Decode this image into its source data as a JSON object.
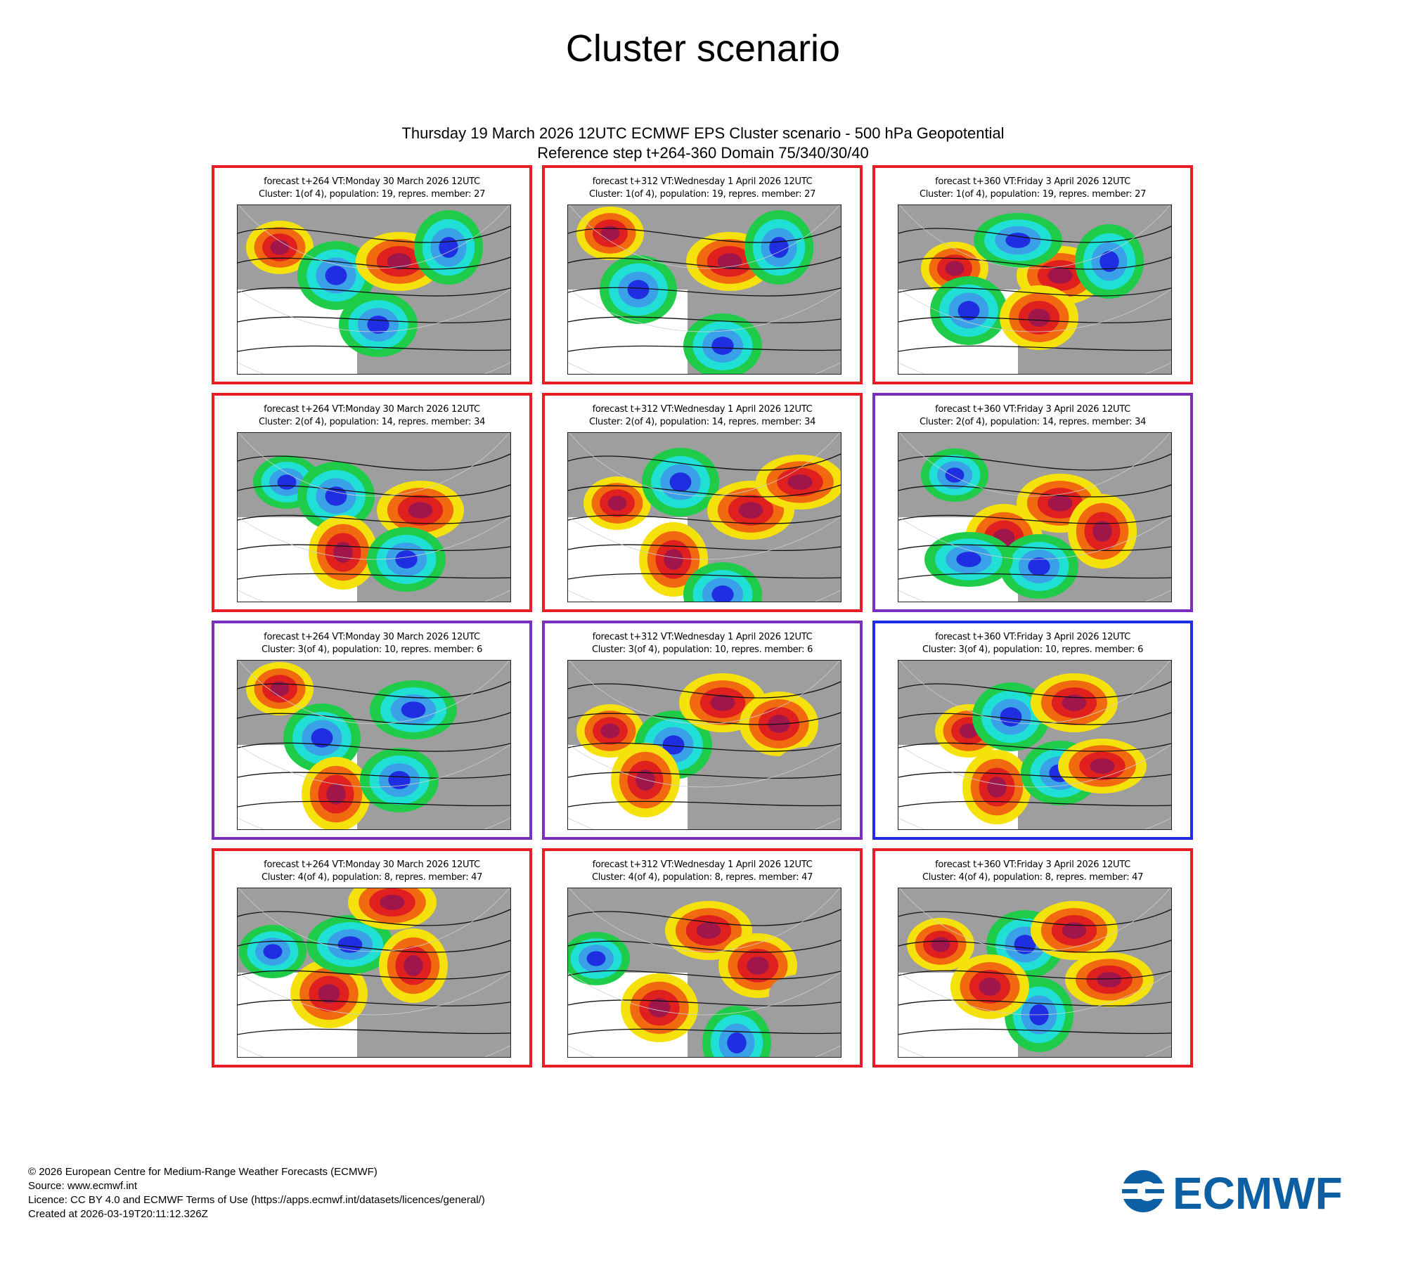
{
  "page": {
    "title": "Cluster scenario",
    "header_line1": "Thursday 19 March 2026 12UTC ECMWF EPS Cluster scenario - 500 hPa Geopotential",
    "header_line2": "Reference step t+264-360 Domain 75/340/30/40"
  },
  "panels": [
    {
      "line1": "forecast t+264 VT:Monday 30 March 2026 12UTC",
      "line2": "Cluster: 1(of 4), population: 19, repres. member: 27",
      "frame_color": "#e81c24"
    },
    {
      "line1": "forecast t+312 VT:Wednesday 1 April 2026 12UTC",
      "line2": "Cluster: 1(of 4), population: 19, repres. member: 27",
      "frame_color": "#e81c24"
    },
    {
      "line1": "forecast t+360 VT:Friday 3 April 2026 12UTC",
      "line2": "Cluster: 1(of 4), population: 19, repres. member: 27",
      "frame_color": "#e81c24"
    },
    {
      "line1": "forecast t+264 VT:Monday 30 March 2026 12UTC",
      "line2": "Cluster: 2(of 4), population: 14, repres. member: 34",
      "frame_color": "#e81c24"
    },
    {
      "line1": "forecast t+312 VT:Wednesday 1 April 2026 12UTC",
      "line2": "Cluster: 2(of 4), population: 14, repres. member: 34",
      "frame_color": "#e81c24"
    },
    {
      "line1": "forecast t+360 VT:Friday 3 April 2026 12UTC",
      "line2": "Cluster: 2(of 4), population: 14, repres. member: 34",
      "frame_color": "#7b2fbe"
    },
    {
      "line1": "forecast t+264 VT:Monday 30 March 2026 12UTC",
      "line2": "Cluster: 3(of 4), population: 10, repres. member: 6",
      "frame_color": "#7b2fbe"
    },
    {
      "line1": "forecast t+312 VT:Wednesday 1 April 2026 12UTC",
      "line2": "Cluster: 3(of 4), population: 10, repres. member: 6",
      "frame_color": "#7b2fbe"
    },
    {
      "line1": "forecast t+360 VT:Friday 3 April 2026 12UTC",
      "line2": "Cluster: 3(of 4), population: 10, repres. member: 6",
      "frame_color": "#1f2ee0"
    },
    {
      "line1": "forecast t+264 VT:Monday 30 March 2026 12UTC",
      "line2": "Cluster: 4(of 4), population: 8, repres. member: 47",
      "frame_color": "#e81c24"
    },
    {
      "line1": "forecast t+312 VT:Wednesday 1 April 2026 12UTC",
      "line2": "Cluster: 4(of 4), population: 8, repres. member: 47",
      "frame_color": "#e81c24"
    },
    {
      "line1": "forecast t+360 VT:Friday 3 April 2026 12UTC",
      "line2": "Cluster: 4(of 4), population: 8, repres. member: 47",
      "frame_color": "#e81c24"
    }
  ],
  "footer": {
    "copyright": "© 2026 European Centre for Medium-Range Weather Forecasts (ECMWF)",
    "source": "Source: www.ecmwf.int",
    "licence": "Licence: CC BY 4.0 and ECMWF Terms of Use (https://apps.ecmwf.int/datasets/licences/general/)",
    "created": "Created at 2026-03-19T20:11:12.326Z"
  },
  "logo": {
    "text": "ECMWF",
    "color": "#0d5fa3"
  },
  "colors": {
    "ridge_strong": "#a0164a",
    "ridge": "#e0201e",
    "ridge_mid": "#f26a10",
    "ridge_weak": "#f5e10c",
    "trough_weak": "#1fcc4a",
    "trough": "#20e0d6",
    "trough_mid": "#3aa0e8",
    "trough_strong": "#1f2ee0",
    "land": "#9e9e9e",
    "neutral": "#ffffff"
  }
}
